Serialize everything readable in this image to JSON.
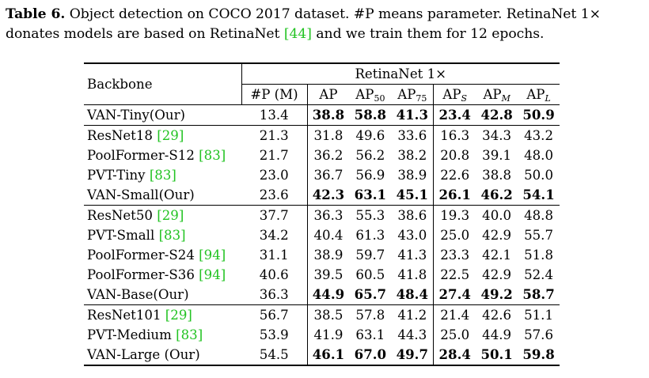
{
  "caption": {
    "label": "Table 6.",
    "text_a": " Object detection on COCO 2017 dataset. #P means parameter. RetinaNet 1× donates models are based on RetinaNet ",
    "cite": "[44]",
    "text_b": " and we train them for 12 epochs."
  },
  "table": {
    "header": {
      "backbone": "Backbone",
      "group": "RetinaNet 1×",
      "params": "#P (M)",
      "ap": "AP",
      "ap_base": "AP",
      "ap50_sub": "50",
      "ap75_sub": "75",
      "aps_sub": "S",
      "apm_sub": "M",
      "apl_sub": "L"
    },
    "rows": [
      {
        "name": "VAN-Tiny(Our)",
        "cite": "",
        "params": "13.4",
        "ap": "38.8",
        "ap50": "58.8",
        "ap75": "41.3",
        "aps": "23.4",
        "apm": "42.8",
        "apl": "50.9"
      },
      {
        "name": "ResNet18 ",
        "cite": "[29]",
        "params": "21.3",
        "ap": "31.8",
        "ap50": "49.6",
        "ap75": "33.6",
        "aps": "16.3",
        "apm": "34.3",
        "apl": "43.2"
      },
      {
        "name": "PoolFormer-S12 ",
        "cite": "[83]",
        "params": "21.7",
        "ap": "36.2",
        "ap50": "56.2",
        "ap75": "38.2",
        "aps": "20.8",
        "apm": "39.1",
        "apl": "48.0"
      },
      {
        "name": "PVT-Tiny ",
        "cite": "[83]",
        "params": "23.0",
        "ap": "36.7",
        "ap50": "56.9",
        "ap75": "38.9",
        "aps": "22.6",
        "apm": "38.8",
        "apl": "50.0"
      },
      {
        "name": "VAN-Small(Our)",
        "cite": "",
        "params": "23.6",
        "ap": "42.3",
        "ap50": "63.1",
        "ap75": "45.1",
        "aps": "26.1",
        "apm": "46.2",
        "apl": "54.1"
      },
      {
        "name": "ResNet50 ",
        "cite": "[29]",
        "params": "37.7",
        "ap": "36.3",
        "ap50": "55.3",
        "ap75": "38.6",
        "aps": "19.3",
        "apm": "40.0",
        "apl": "48.8"
      },
      {
        "name": "PVT-Small ",
        "cite": "[83]",
        "params": "34.2",
        "ap": "40.4",
        "ap50": "61.3",
        "ap75": "43.0",
        "aps": "25.0",
        "apm": "42.9",
        "apl": "55.7"
      },
      {
        "name": "PoolFormer-S24 ",
        "cite": "[94]",
        "params": "31.1",
        "ap": "38.9",
        "ap50": "59.7",
        "ap75": "41.3",
        "aps": "23.3",
        "apm": "42.1",
        "apl": "51.8"
      },
      {
        "name": "PoolFormer-S36 ",
        "cite": "[94]",
        "params": "40.6",
        "ap": "39.5",
        "ap50": "60.5",
        "ap75": "41.8",
        "aps": "22.5",
        "apm": "42.9",
        "apl": "52.4"
      },
      {
        "name": "VAN-Base(Our)",
        "cite": "",
        "params": "36.3",
        "ap": "44.9",
        "ap50": "65.7",
        "ap75": "48.4",
        "aps": "27.4",
        "apm": "49.2",
        "apl": "58.7"
      },
      {
        "name": "ResNet101 ",
        "cite": "[29]",
        "params": "56.7",
        "ap": "38.5",
        "ap50": "57.8",
        "ap75": "41.2",
        "aps": "21.4",
        "apm": "42.6",
        "apl": "51.1"
      },
      {
        "name": "PVT-Medium ",
        "cite": "[83]",
        "params": "53.9",
        "ap": "41.9",
        "ap50": "63.1",
        "ap75": "44.3",
        "aps": "25.0",
        "apm": "44.9",
        "apl": "57.6"
      },
      {
        "name": "VAN-Large (Our)",
        "cite": "",
        "params": "54.5",
        "ap": "46.1",
        "ap50": "67.0",
        "ap75": "49.7",
        "aps": "28.4",
        "apm": "50.1",
        "apl": "59.8"
      }
    ]
  },
  "colors": {
    "citation": "#22c322",
    "text": "#000000"
  }
}
